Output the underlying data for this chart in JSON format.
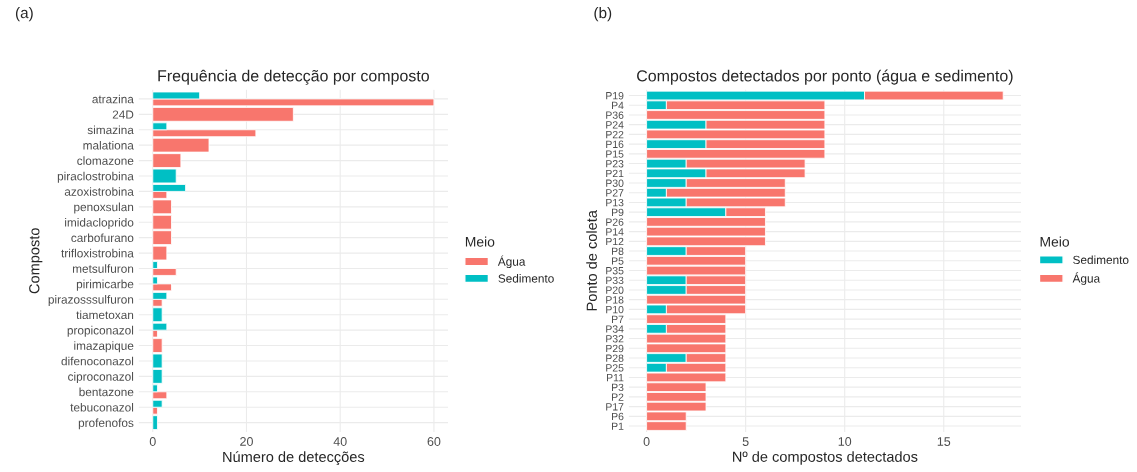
{
  "chart_data": [
    {
      "type": "bar",
      "orientation": "horizontal",
      "title": "Frequência de detecção por composto",
      "xlabel": "Número de detecções",
      "ylabel": "Composto",
      "legend_title": "Meio",
      "legend": "right",
      "grid": true,
      "annotations": [
        "(a)"
      ],
      "categories": [
        "atrazina",
        "24D",
        "simazina",
        "malationa",
        "clomazone",
        "piraclostrobina",
        "azoxistrobina",
        "penoxsulan",
        "imidacloprido",
        "carbofurano",
        "trifloxistrobina",
        "metsulfuron",
        "pirimicarbe",
        "pirazosssulfuron",
        "tiametoxan",
        "propiconazol",
        "imazapique",
        "difenoconazol",
        "ciproconazol",
        "bentazone",
        "tebuconazol",
        "profenofos"
      ],
      "xlim": [
        -3,
        63
      ],
      "xticks": [
        0,
        20,
        40,
        60
      ],
      "series": [
        {
          "name": "Água",
          "color": "#f8766d",
          "values": [
            60,
            30,
            22,
            12,
            6,
            null,
            3,
            4,
            4,
            4,
            3,
            5,
            4,
            2,
            null,
            1,
            2,
            null,
            null,
            3,
            1,
            null
          ]
        },
        {
          "name": "Sedimento",
          "color": "#00bfc4",
          "values": [
            10,
            null,
            3,
            null,
            null,
            5,
            7,
            null,
            null,
            null,
            null,
            1,
            1,
            3,
            2,
            3,
            null,
            2,
            2,
            1,
            2,
            1
          ]
        }
      ]
    },
    {
      "type": "bar",
      "orientation": "horizontal",
      "stacked": true,
      "title": "Compostos detectados por ponto (água e sedimento)",
      "xlabel": "Nº de compostos detectados",
      "ylabel": "Ponto de coleta",
      "legend_title": "Meio",
      "legend": "right",
      "grid": true,
      "annotations": [
        "(b)"
      ],
      "categories": [
        "P19",
        "P4",
        "P36",
        "P24",
        "P22",
        "P16",
        "P15",
        "P23",
        "P21",
        "P30",
        "P27",
        "P13",
        "P9",
        "P26",
        "P14",
        "P12",
        "P8",
        "P5",
        "P35",
        "P33",
        "P20",
        "P18",
        "P10",
        "P7",
        "P34",
        "P32",
        "P29",
        "P28",
        "P25",
        "P11",
        "P3",
        "P2",
        "P17",
        "P6",
        "P1"
      ],
      "xlim": [
        -0.9,
        18.9
      ],
      "xticks": [
        0,
        5,
        10,
        15
      ],
      "series": [
        {
          "name": "Sedimento",
          "color": "#00bfc4",
          "values": [
            11,
            1,
            null,
            3,
            null,
            3,
            null,
            2,
            3,
            2,
            1,
            2,
            4,
            null,
            null,
            null,
            2,
            null,
            null,
            2,
            2,
            null,
            1,
            null,
            1,
            null,
            null,
            2,
            1,
            null,
            null,
            null,
            null,
            null,
            null
          ]
        },
        {
          "name": "Água",
          "color": "#f8766d",
          "values": [
            7,
            8,
            9,
            6,
            9,
            6,
            9,
            6,
            5,
            5,
            6,
            5,
            2,
            6,
            6,
            6,
            3,
            5,
            5,
            3,
            3,
            5,
            4,
            4,
            3,
            4,
            4,
            2,
            3,
            4,
            3,
            3,
            3,
            2,
            2
          ]
        }
      ]
    }
  ]
}
